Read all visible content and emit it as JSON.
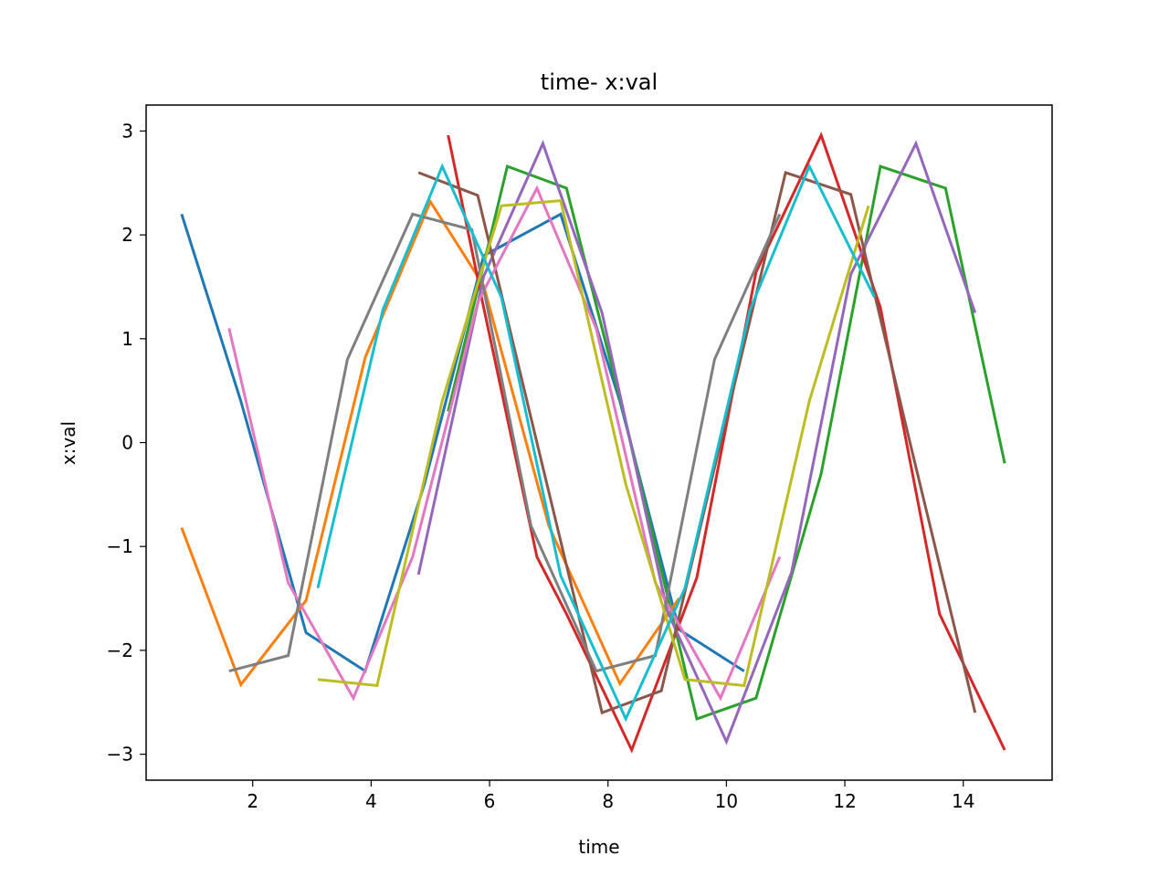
{
  "chart_data": {
    "type": "line",
    "title": "time- x:val",
    "xlabel": "time",
    "ylabel": "x:val",
    "xlim": [
      0.2,
      15.5
    ],
    "ylim": [
      -3.25,
      3.25
    ],
    "xticks": [
      2,
      4,
      6,
      8,
      10,
      12,
      14
    ],
    "yticks": [
      -3,
      -2,
      -1,
      0,
      1,
      2,
      3
    ],
    "ytick_labels": [
      "−3",
      "−2",
      "−1",
      "0",
      "1",
      "2",
      "3"
    ],
    "grid": false,
    "legend": "none",
    "series": [
      {
        "color": "#1f77b4",
        "x": [
          0.8,
          1.8,
          2.9,
          3.9,
          4.9,
          5.9,
          7.2,
          8.2,
          9.2,
          10.3
        ],
        "y": [
          2.2,
          0.4,
          -1.83,
          -2.2,
          -0.4,
          1.8,
          2.2,
          0.4,
          -1.8,
          -2.2
        ]
      },
      {
        "color": "#ff7f0e",
        "x": [
          0.8,
          1.8,
          2.9,
          3.9,
          5.0,
          5.9,
          7.0,
          8.2,
          9.2
        ],
        "y": [
          -0.82,
          -2.33,
          -1.52,
          0.82,
          2.32,
          1.51,
          -0.8,
          -2.32,
          -1.5
        ]
      },
      {
        "color": "#2ca02c",
        "x": [
          5.3,
          6.3,
          7.3,
          8.3,
          9.5,
          10.5,
          11.6,
          12.6,
          13.7,
          14.7
        ],
        "y": [
          0.3,
          2.66,
          2.45,
          0.2,
          -2.66,
          -2.46,
          -0.3,
          2.66,
          2.45,
          -0.2
        ]
      },
      {
        "color": "#d62728",
        "x": [
          5.3,
          5.9,
          6.8,
          7.3,
          8.4,
          9.5,
          10.5,
          11.6,
          12.6,
          13.6,
          14.7
        ],
        "y": [
          2.96,
          1.3,
          -1.1,
          -1.65,
          -2.96,
          -1.3,
          1.64,
          2.96,
          1.3,
          -1.65,
          -2.96
        ]
      },
      {
        "color": "#9467bd",
        "x": [
          4.8,
          5.9,
          6.9,
          7.9,
          9.0,
          10.0,
          11.1,
          12.1,
          13.2,
          14.2
        ],
        "y": [
          -1.27,
          1.6,
          2.88,
          1.25,
          -1.62,
          -2.88,
          -1.25,
          1.62,
          2.88,
          1.25
        ]
      },
      {
        "color": "#8c564b",
        "x": [
          4.8,
          5.8,
          6.8,
          7.9,
          8.9,
          9.9,
          11.0,
          12.1,
          13.1,
          14.2
        ],
        "y": [
          2.6,
          2.38,
          0.0,
          -2.6,
          -2.39,
          0.0,
          2.6,
          2.39,
          0.0,
          -2.6
        ]
      },
      {
        "color": "#e377c2",
        "x": [
          1.6,
          2.6,
          3.7,
          4.7,
          5.8,
          6.8,
          7.8,
          8.8,
          9.9,
          10.9
        ],
        "y": [
          1.1,
          -1.35,
          -2.46,
          -1.1,
          1.35,
          2.45,
          1.1,
          -1.35,
          -2.46,
          -1.1
        ]
      },
      {
        "color": "#7f7f7f",
        "x": [
          1.6,
          2.6,
          3.6,
          4.7,
          5.7,
          6.7,
          7.8,
          8.8,
          9.8,
          10.9
        ],
        "y": [
          -2.2,
          -2.05,
          0.8,
          2.2,
          2.05,
          -0.8,
          -2.2,
          -2.05,
          0.8,
          2.2
        ]
      },
      {
        "color": "#bcbd22",
        "x": [
          3.1,
          4.1,
          5.2,
          6.2,
          7.2,
          8.3,
          9.3,
          10.3,
          11.4,
          12.4
        ],
        "y": [
          -2.28,
          -2.34,
          0.4,
          2.28,
          2.33,
          -0.4,
          -2.28,
          -2.34,
          0.4,
          2.28
        ]
      },
      {
        "color": "#17becf",
        "x": [
          3.1,
          4.2,
          5.2,
          6.2,
          7.2,
          8.3,
          9.3,
          10.4,
          11.4,
          12.5
        ],
        "y": [
          -1.4,
          1.28,
          2.66,
          1.4,
          -1.28,
          -2.66,
          -1.4,
          1.28,
          2.66,
          1.4
        ]
      }
    ]
  }
}
